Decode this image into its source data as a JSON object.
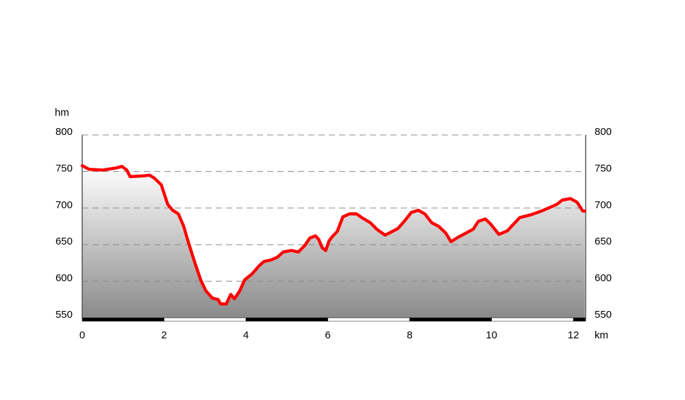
{
  "chart_data": {
    "type": "area",
    "y_label": "hm",
    "x_label": "km",
    "x": [
      0,
      0.17,
      0.5,
      0.84,
      0.97,
      1.09,
      1.17,
      1.51,
      1.64,
      1.76,
      1.93,
      2.09,
      2.21,
      2.35,
      2.48,
      2.6,
      2.76,
      2.9,
      3.02,
      3.18,
      3.32,
      3.38,
      3.52,
      3.63,
      3.72,
      3.85,
      3.97,
      4.15,
      4.32,
      4.44,
      4.61,
      4.77,
      4.91,
      5.11,
      5.28,
      5.44,
      5.56,
      5.7,
      5.78,
      5.86,
      5.95,
      6.03,
      6.11,
      6.23,
      6.37,
      6.53,
      6.7,
      6.83,
      7.04,
      7.2,
      7.4,
      7.54,
      7.71,
      7.87,
      8.04,
      8.21,
      8.37,
      8.54,
      8.71,
      8.88,
      9.01,
      9.18,
      9.38,
      9.55,
      9.68,
      9.85,
      9.98,
      10.18,
      10.39,
      10.52,
      10.69,
      10.97,
      11.22,
      11.47,
      11.59,
      11.73,
      11.93,
      12.09,
      12.23,
      12.28
    ],
    "series": [
      {
        "color": "#ff0000",
        "values": [
          758,
          753,
          752,
          755,
          757,
          752,
          743,
          744,
          745,
          741,
          732,
          705,
          697,
          692,
          675,
          652,
          624,
          601,
          587,
          577,
          575,
          569,
          569,
          582,
          576,
          587,
          602,
          610,
          621,
          627,
          629,
          633,
          640,
          642,
          640,
          649,
          659,
          662,
          657,
          646,
          642,
          655,
          661,
          668,
          688,
          692,
          692,
          687,
          680,
          671,
          663,
          667,
          672,
          682,
          694,
          697,
          692,
          680,
          675,
          666,
          654,
          660,
          666,
          671,
          682,
          685,
          678,
          664,
          669,
          677,
          687,
          691,
          696,
          702,
          705,
          711,
          713,
          708,
          696,
          696
        ]
      }
    ],
    "xlim": [
      0,
      12.3
    ],
    "xticks": [
      0,
      2,
      4,
      6,
      8,
      10,
      12
    ],
    "ylim": [
      550,
      800
    ],
    "yticks": [
      550,
      600,
      650,
      700,
      750,
      800
    ],
    "y2lim": [
      550,
      800
    ],
    "y2ticks": [
      550,
      600,
      650,
      700,
      750,
      800
    ],
    "grid": true
  }
}
